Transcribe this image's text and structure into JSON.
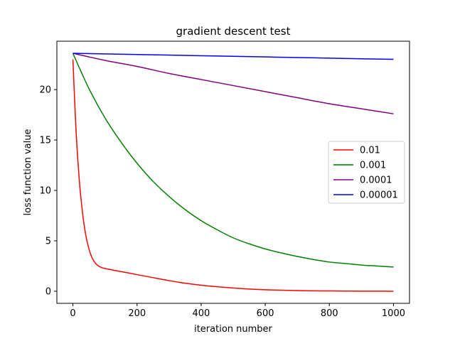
{
  "chart_data": {
    "type": "line",
    "title": "gradient descent test",
    "xlabel": "iteration number",
    "ylabel": "loss function value",
    "xlim": [
      -50,
      1050
    ],
    "ylim": [
      -1.2,
      24.8
    ],
    "xticks": [
      0,
      200,
      400,
      600,
      800,
      1000
    ],
    "yticks": [
      0,
      5,
      10,
      15,
      20
    ],
    "grid": false,
    "legend_position": "center-right",
    "series": [
      {
        "name": "0.01",
        "color": "#ff0000",
        "x": [
          0,
          10,
          20,
          30,
          40,
          50,
          60,
          70,
          80,
          90,
          100,
          150,
          200,
          250,
          300,
          350,
          400,
          450,
          500,
          550,
          600,
          650,
          700,
          750,
          800,
          850,
          900,
          950,
          1000
        ],
        "y": [
          23.0,
          15.8,
          11.0,
          7.8,
          5.6,
          4.2,
          3.3,
          2.8,
          2.5,
          2.35,
          2.25,
          1.95,
          1.65,
          1.35,
          1.05,
          0.8,
          0.6,
          0.45,
          0.32,
          0.22,
          0.15,
          0.1,
          0.07,
          0.04,
          0.03,
          0.02,
          0.01,
          0.005,
          0.0
        ]
      },
      {
        "name": "0.001",
        "color": "#008000",
        "x": [
          0,
          50,
          100,
          150,
          200,
          250,
          300,
          350,
          400,
          450,
          500,
          550,
          600,
          650,
          700,
          750,
          800,
          850,
          900,
          950,
          1000
        ],
        "y": [
          23.6,
          20.1,
          17.2,
          14.8,
          12.7,
          10.9,
          9.4,
          8.1,
          7.0,
          6.1,
          5.3,
          4.7,
          4.2,
          3.8,
          3.45,
          3.15,
          2.9,
          2.75,
          2.6,
          2.5,
          2.4
        ]
      },
      {
        "name": "0.0001",
        "color": "#800080",
        "x": [
          0,
          100,
          200,
          300,
          400,
          500,
          600,
          700,
          800,
          900,
          1000
        ],
        "y": [
          23.6,
          22.9,
          22.3,
          21.6,
          21.0,
          20.4,
          19.8,
          19.2,
          18.6,
          18.1,
          17.6
        ]
      },
      {
        "name": "0.00001",
        "color": "#0000ff",
        "x": [
          0,
          250,
          500,
          750,
          1000
        ],
        "y": [
          23.6,
          23.45,
          23.3,
          23.15,
          23.0
        ]
      }
    ]
  }
}
